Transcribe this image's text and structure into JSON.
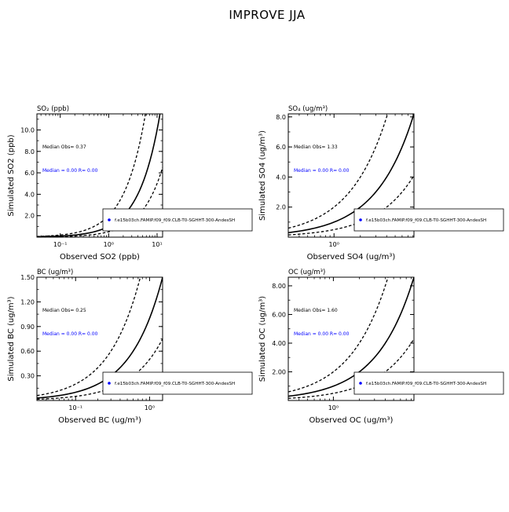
{
  "figure": {
    "title": "IMPROVE JJA"
  },
  "chart_data": [
    {
      "type": "scatter",
      "title": "SO₂ (ppb)",
      "xlabel": "Observed SO2 (ppb)",
      "ylabel": "Simulated SO2 (ppb)",
      "x_scale": "log",
      "xlim": [
        0.033,
        13
      ],
      "ylim": [
        0,
        11.5
      ],
      "xticks": [
        0.1,
        1,
        10
      ],
      "xtick_labels": [
        "10⁻¹",
        "10⁰",
        "10¹"
      ],
      "yticks": [
        2,
        4,
        6,
        8,
        10
      ],
      "ytick_labels": [
        "2.0",
        "4.0",
        "6.0",
        "8.0",
        "10.0"
      ],
      "reference_lines": [
        {
          "name": "1:1",
          "style": "solid",
          "factor": 1
        },
        {
          "name": "2:1",
          "style": "dashed",
          "factor": 2
        },
        {
          "name": "1:2",
          "style": "dashed",
          "factor": 0.5
        }
      ],
      "annotations": {
        "median_obs": "Median Obs= 0.37",
        "median_sim": "Median = 0.00  R= 0.00"
      },
      "legend": {
        "entry": "f.e15b03ch.FAMIP.f09_f09.CLB-T0-SGHHT-300-AndesSH",
        "placement": "lower-right"
      },
      "series": [
        {
          "name": "f.e15b03ch.FAMIP.f09_f09.CLB-T0-SGHHT-300-AndesSH",
          "points": []
        }
      ]
    },
    {
      "type": "scatter",
      "title": "SO₄ (ug/m³)",
      "xlabel": "Observed SO4 (ug/m³)",
      "ylabel": "Simulated SO4 (ug/m³)",
      "x_scale": "log",
      "xlim": [
        0.3,
        8.2
      ],
      "ylim": [
        0,
        8.2
      ],
      "xticks": [
        1
      ],
      "xtick_labels": [
        "10⁰"
      ],
      "yticks": [
        2,
        4,
        6,
        8
      ],
      "ytick_labels": [
        "2.0",
        "4.0",
        "6.0",
        "8.0"
      ],
      "reference_lines": [
        {
          "name": "1:1",
          "style": "solid",
          "factor": 1
        },
        {
          "name": "2:1",
          "style": "dashed",
          "factor": 2
        },
        {
          "name": "1:2",
          "style": "dashed",
          "factor": 0.5
        }
      ],
      "annotations": {
        "median_obs": "Median Obs= 1.33",
        "median_sim": "Median = 0.00  R= 0.00"
      },
      "legend": {
        "entry": "f.e15b03ch.FAMIP.f09_f09.CLB-T0-SGHHT-300-AndesSH",
        "placement": "lower-right"
      },
      "series": [
        {
          "name": "f.e15b03ch.FAMIP.f09_f09.CLB-T0-SGHHT-300-AndesSH",
          "points": []
        }
      ]
    },
    {
      "type": "scatter",
      "title": "BC (ug/m³)",
      "xlabel": "Observed BC (ug/m³)",
      "ylabel": "Simulated BC (ug/m³)",
      "x_scale": "log",
      "xlim": [
        0.03,
        1.5
      ],
      "ylim": [
        0,
        1.5
      ],
      "xticks": [
        0.1,
        1
      ],
      "xtick_labels": [
        "10⁻¹",
        "10⁰"
      ],
      "yticks": [
        0.3,
        0.6,
        0.9,
        1.2,
        1.5
      ],
      "ytick_labels": [
        "0.30",
        "0.60",
        "0.90",
        "1.20",
        "1.50"
      ],
      "reference_lines": [
        {
          "name": "1:1",
          "style": "solid",
          "factor": 1
        },
        {
          "name": "2:1",
          "style": "dashed",
          "factor": 2
        },
        {
          "name": "1:2",
          "style": "dashed",
          "factor": 0.5
        }
      ],
      "annotations": {
        "median_obs": "Median Obs= 0.25",
        "median_sim": "Median = 0.00  R= 0.00"
      },
      "legend": {
        "entry": "f.e15b03ch.FAMIP.f09_f09.CLB-T0-SGHHT-300-AndesSH",
        "placement": "lower-right"
      },
      "series": [
        {
          "name": "f.e15b03ch.FAMIP.f09_f09.CLB-T0-SGHHT-300-AndesSH",
          "points": []
        }
      ]
    },
    {
      "type": "scatter",
      "title": "OC (ug/m³)",
      "xlabel": "Observed OC (ug/m³)",
      "ylabel": "Simulated OC (ug/m³)",
      "x_scale": "log",
      "xlim": [
        0.3,
        8.6
      ],
      "ylim": [
        0,
        8.6
      ],
      "xticks": [
        1
      ],
      "xtick_labels": [
        "10⁰"
      ],
      "yticks": [
        2,
        4,
        6,
        8
      ],
      "ytick_labels": [
        "2.00",
        "4.00",
        "6.00",
        "8.00"
      ],
      "reference_lines": [
        {
          "name": "1:1",
          "style": "solid",
          "factor": 1
        },
        {
          "name": "2:1",
          "style": "dashed",
          "factor": 2
        },
        {
          "name": "1:2",
          "style": "dashed",
          "factor": 0.5
        }
      ],
      "annotations": {
        "median_obs": "Median Obs= 1.60",
        "median_sim": "Median = 0.00  R= 0.00"
      },
      "legend": {
        "entry": "f.e15b03ch.FAMIP.f09_f09.CLB-T0-SGHHT-300-AndesSH",
        "placement": "lower-right"
      },
      "series": [
        {
          "name": "f.e15b03ch.FAMIP.f09_f09.CLB-T0-SGHHT-300-AndesSH",
          "points": []
        }
      ]
    }
  ],
  "colors": {
    "axes": "#000000",
    "median_sim": "#0000ff",
    "legend_marker": "#0000ff"
  }
}
